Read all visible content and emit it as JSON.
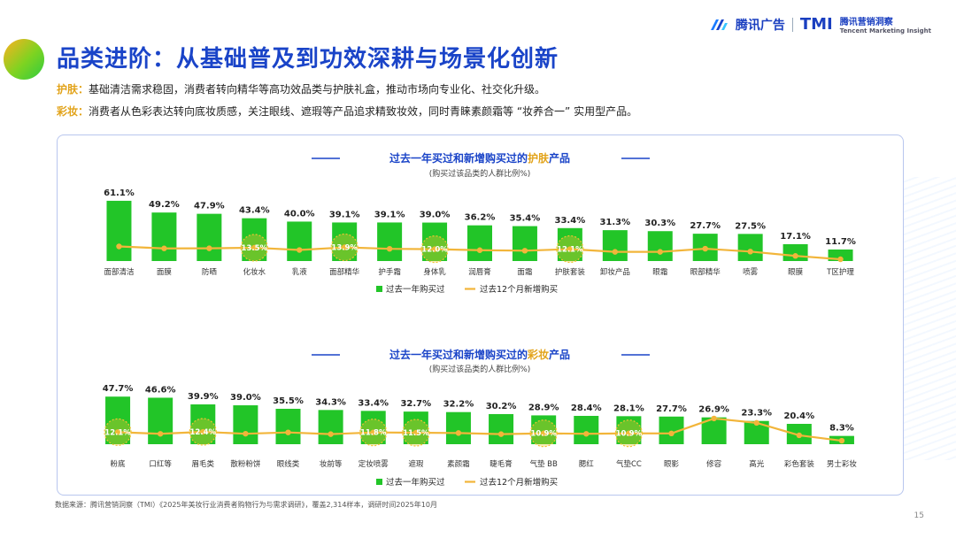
{
  "header": {
    "title": "品类进阶：从基础普及到功效深耕与场景化创新",
    "brand_left": "腾讯广告",
    "brand_right": "TMI",
    "brand_right_sub": "腾讯营销洞察",
    "brand_right_en": "Tencent Marketing Insight"
  },
  "intro": [
    {
      "tag": "护肤：",
      "text": "基础清洁需求稳固，消费者转向精华等高功效品类与护肤礼盒，推动市场向专业化、社交化升级。"
    },
    {
      "tag": "彩妆：",
      "text": "消费者从色彩表达转向底妆质感，关注眼线、遮瑕等产品追求精致妆效，同时青睐素颜霜等 “妆养合一” 实用型产品。"
    }
  ],
  "footer": {
    "source": "数据来源：腾讯营销洞察（TMI）《2025年美妆行业消费者购物行为与需求调研》，覆盖2,314样本，调研时间2025年10月",
    "page": "15"
  },
  "colors": {
    "bar": "#22c528",
    "line": "#f2b53a",
    "highlight": "#f2c232",
    "title_accent": "#e2a31a",
    "title": "#1a44c8"
  },
  "chart_data": [
    {
      "type": "bar",
      "title_prefix": "过去一年买过和新增购买过的",
      "title_accent": "护肤",
      "title_suffix": "产品",
      "subtitle": "(购买过该品类的人群比例%)",
      "categories": [
        "面部清洁",
        "面膜",
        "防晒",
        "化妆水",
        "乳液",
        "面部精华",
        "护手霜",
        "身体乳",
        "润唇膏",
        "面霜",
        "护肤套装",
        "卸妆产品",
        "眼霜",
        "眼部精华",
        "喷雾",
        "眼膜",
        "T区护理"
      ],
      "series": [
        {
          "name": "过去一年购买过",
          "type": "bar",
          "values": [
            61.1,
            49.2,
            47.9,
            43.4,
            40.0,
            39.1,
            39.1,
            39.0,
            36.2,
            35.4,
            33.4,
            31.3,
            30.3,
            27.7,
            27.5,
            17.1,
            11.7
          ]
        },
        {
          "name": "过去12个月新增购买",
          "type": "line",
          "values": [
            14.8,
            12.8,
            12.9,
            13.5,
            11.2,
            13.9,
            12.4,
            12.0,
            11.0,
            10.5,
            12.1,
            9.3,
            9.3,
            12.5,
            9.6,
            5.2,
            1.8
          ]
        }
      ],
      "highlight_labels": [
        {
          "index": 3,
          "text": "13.5%"
        },
        {
          "index": 5,
          "text": "13.9%"
        },
        {
          "index": 7,
          "text": "12.0%"
        },
        {
          "index": 10,
          "text": "12.1%"
        }
      ],
      "ylim": [
        0,
        70
      ]
    },
    {
      "type": "bar",
      "title_prefix": "过去一年买过和新增购买过的",
      "title_accent": "彩妆",
      "title_suffix": "产品",
      "subtitle": "(购买过该品类的人群比例%)",
      "categories": [
        "粉底",
        "口红等",
        "眉毛类",
        "散粉粉饼",
        "眼线类",
        "妆前等",
        "定妆喷雾",
        "遮瑕",
        "素颜霜",
        "睫毛膏",
        "气垫 BB",
        "腮红",
        "气垫CC",
        "眼影",
        "修容",
        "高光",
        "彩色套装",
        "男士彩妆"
      ],
      "series": [
        {
          "name": "过去一年购买过",
          "type": "bar",
          "values": [
            47.7,
            46.6,
            39.9,
            39.0,
            35.5,
            34.3,
            33.4,
            32.7,
            32.2,
            30.2,
            28.9,
            28.4,
            28.1,
            27.7,
            26.9,
            23.3,
            20.4,
            8.3
          ]
        },
        {
          "name": "过去12个月新增购买",
          "type": "line",
          "values": [
            12.1,
            10.4,
            12.4,
            10.5,
            11.8,
            10.1,
            11.8,
            11.5,
            11.2,
            10.1,
            10.9,
            10.4,
            10.9,
            10.8,
            25.8,
            21.4,
            8.9,
            3.5
          ]
        }
      ],
      "highlight_labels": [
        {
          "index": 0,
          "text": "12.1%"
        },
        {
          "index": 2,
          "text": "12.4%"
        },
        {
          "index": 6,
          "text": "11.8%"
        },
        {
          "index": 7,
          "text": "11.5%"
        },
        {
          "index": 10,
          "text": "10.9%"
        },
        {
          "index": 12,
          "text": "10.9%"
        }
      ],
      "ylim": [
        0,
        55
      ]
    }
  ]
}
